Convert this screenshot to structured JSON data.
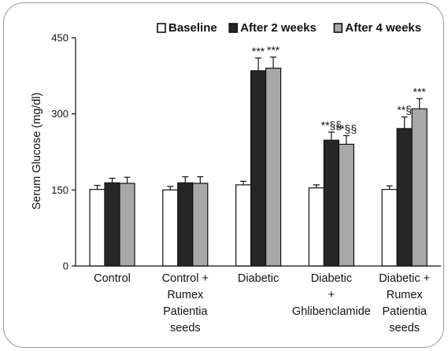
{
  "chart_data": {
    "type": "bar",
    "ylabel": "Serum Glucose (mg/dl)",
    "xlabel": "",
    "ylim": [
      0,
      450
    ],
    "yticks": [
      "0",
      "150",
      "300",
      "450"
    ],
    "grid": false,
    "legend_position": "top-right",
    "categories": [
      [
        "Control"
      ],
      [
        "Control +",
        "Rumex",
        "Patientia",
        "seeds"
      ],
      [
        "Diabetic"
      ],
      [
        "Diabetic",
        "+",
        "Ghlibenclamide"
      ],
      [
        "Diabetic +",
        "Rumex",
        "Patientia",
        "seeds"
      ]
    ],
    "series": [
      {
        "name": "Baseline",
        "color": "#ffffff",
        "values": [
          151,
          150,
          160,
          154,
          151
        ],
        "errors": [
          8,
          7,
          7,
          6,
          7
        ]
      },
      {
        "name": "After 2 weeks",
        "color": "#262626",
        "values": [
          164,
          164,
          385,
          248,
          271
        ],
        "errors": [
          9,
          12,
          25,
          16,
          23
        ]
      },
      {
        "name": "After 4 weeks",
        "color": "#a8a8a8",
        "values": [
          163,
          163,
          390,
          240,
          310
        ],
        "errors": [
          12,
          13,
          22,
          17,
          20
        ]
      }
    ],
    "annotations": [
      {
        "category": 2,
        "series": 1,
        "text": "***"
      },
      {
        "category": 2,
        "series": 2,
        "text": "***"
      },
      {
        "category": 3,
        "series": 1,
        "text": "**§§"
      },
      {
        "category": 3,
        "series": 2,
        "text": "**§§"
      },
      {
        "category": 4,
        "series": 1,
        "text": "**§"
      },
      {
        "category": 4,
        "series": 2,
        "text": "***"
      }
    ]
  }
}
